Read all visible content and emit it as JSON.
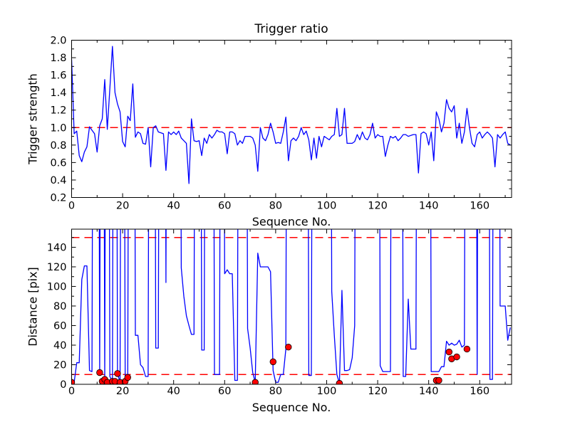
{
  "figure": {
    "background": "#ffffff",
    "note": "matplotlib-style figure, two stacked line plots, no legend, grid off",
    "offscale_value": 999
  },
  "styles": {
    "line_color": "#0000ff",
    "threshold_color": "#ff0000",
    "marker_face": "#ff0000",
    "marker_edge": "#000000",
    "axis_color": "#000000",
    "text_color": "#000000"
  },
  "chart_data": [
    {
      "type": "line",
      "title": "Trigger ratio",
      "xlabel": "Sequence No.",
      "ylabel": "Trigger strength",
      "xlim": [
        0,
        172.5
      ],
      "ylim": [
        0.2,
        2.0
      ],
      "grid": false,
      "legend": null,
      "xticks": {
        "major": [
          0,
          20,
          40,
          60,
          80,
          100,
          120,
          140,
          160
        ],
        "labels": [
          "0",
          "20",
          "40",
          "60",
          "80",
          "100",
          "120",
          "140",
          "160"
        ],
        "minor": [
          10,
          30,
          50,
          70,
          90,
          110,
          130,
          150,
          170
        ]
      },
      "yticks": {
        "major": [
          0.2,
          0.4,
          0.6,
          0.8,
          1.0,
          1.2,
          1.4,
          1.6,
          1.8,
          2.0
        ],
        "labels": [
          "0.2",
          "0.4",
          "0.6",
          "0.8",
          "1.0",
          "1.2",
          "1.4",
          "1.6",
          "1.8",
          "2.0"
        ],
        "minor": [
          0.3,
          0.5,
          0.7,
          0.9,
          1.1,
          1.3,
          1.5,
          1.7,
          1.9
        ]
      },
      "thresholds": [
        1.0
      ],
      "x_step": 1,
      "values": [
        1.78,
        0.93,
        0.96,
        0.68,
        0.61,
        0.72,
        0.78,
        1.01,
        0.97,
        0.93,
        0.72,
        1.02,
        1.1,
        1.55,
        0.98,
        1.45,
        1.93,
        1.4,
        1.27,
        1.18,
        0.84,
        0.78,
        1.13,
        1.08,
        1.5,
        0.89,
        0.95,
        0.93,
        0.82,
        0.81,
        1.0,
        0.55,
        1.0,
        1.02,
        0.95,
        0.94,
        0.93,
        0.51,
        0.95,
        0.92,
        0.95,
        0.92,
        0.96,
        0.88,
        0.85,
        0.82,
        0.36,
        1.1,
        0.85,
        0.84,
        0.85,
        0.68,
        0.88,
        0.82,
        0.92,
        0.88,
        0.92,
        0.97,
        0.95,
        0.95,
        0.93,
        0.7,
        0.95,
        0.95,
        0.93,
        0.8,
        0.85,
        0.82,
        0.9,
        0.9,
        0.9,
        0.88,
        0.8,
        0.5,
        1.0,
        0.88,
        0.85,
        0.92,
        1.05,
        0.95,
        0.82,
        0.83,
        0.82,
        0.95,
        1.12,
        0.62,
        0.85,
        0.88,
        0.85,
        0.9,
        1.0,
        0.92,
        0.96,
        0.86,
        0.63,
        0.88,
        0.65,
        0.9,
        0.78,
        0.9,
        0.88,
        0.86,
        0.9,
        0.92,
        1.22,
        0.9,
        0.92,
        1.22,
        0.82,
        0.82,
        0.82,
        0.84,
        0.92,
        0.86,
        0.95,
        0.88,
        0.86,
        0.92,
        1.05,
        0.88,
        0.92,
        0.9,
        0.9,
        0.67,
        0.8,
        0.9,
        0.88,
        0.9,
        0.85,
        0.88,
        0.92,
        0.92,
        0.9,
        0.91,
        0.92,
        0.92,
        0.48,
        0.93,
        0.95,
        0.93,
        0.8,
        0.95,
        0.62,
        1.18,
        1.1,
        0.95,
        1.05,
        1.32,
        1.22,
        1.18,
        1.25,
        0.88,
        1.05,
        0.82,
        0.95,
        1.22,
        1.0,
        0.82,
        0.78,
        0.92,
        0.95,
        0.88,
        0.92,
        0.95,
        0.92,
        0.88,
        0.55,
        0.92,
        0.88,
        0.92,
        0.95,
        0.82,
        0.8
      ],
      "markers": []
    },
    {
      "type": "line",
      "title": "",
      "xlabel": "Sequence No.",
      "ylabel": "Distance [pix]",
      "xlim": [
        0,
        172.5
      ],
      "ylim": [
        0,
        158.5
      ],
      "grid": false,
      "legend": null,
      "xticks": {
        "major": [
          0,
          20,
          40,
          60,
          80,
          100,
          120,
          140,
          160
        ],
        "labels": [
          "0",
          "20",
          "40",
          "60",
          "80",
          "100",
          "120",
          "140",
          "160"
        ],
        "minor": [
          10,
          30,
          50,
          70,
          90,
          110,
          130,
          150,
          170
        ]
      },
      "yticks": {
        "major": [
          0,
          20,
          40,
          60,
          80,
          100,
          120,
          140
        ],
        "labels": [
          "0",
          "20",
          "40",
          "60",
          "80",
          "100",
          "120",
          "140"
        ],
        "minor": [
          10,
          30,
          50,
          70,
          90,
          110,
          130,
          150
        ]
      },
      "thresholds": [
        150,
        10
      ],
      "x_step": 1,
      "values": [
        0,
        2,
        22,
        22,
        107,
        121,
        121,
        14,
        13,
        999,
        999,
        11,
        999,
        4,
        999,
        8,
        3,
        999,
        11,
        2,
        999,
        3,
        7,
        999,
        999,
        50,
        50,
        20,
        17,
        8,
        8,
        999,
        999,
        37,
        37,
        999,
        999,
        104,
        999,
        999,
        999,
        999,
        999,
        119,
        90,
        70,
        60,
        51,
        51,
        999,
        999,
        35,
        35,
        999,
        999,
        999,
        10,
        10,
        10,
        999,
        113,
        117,
        113,
        113,
        4,
        4,
        999,
        999,
        999,
        57,
        37,
        12,
        2,
        134,
        120,
        120,
        120,
        120,
        115,
        14,
        2,
        2,
        10,
        10,
        36,
        999,
        999,
        999,
        999,
        999,
        999,
        999,
        999,
        9,
        9,
        999,
        999,
        999,
        999,
        999,
        999,
        999,
        95,
        50,
        10,
        1,
        96,
        14,
        14,
        15,
        27,
        60,
        999,
        999,
        999,
        999,
        999,
        999,
        999,
        999,
        999,
        19,
        13,
        13,
        13,
        13,
        999,
        999,
        999,
        999,
        8,
        8,
        87,
        36,
        36,
        36,
        999,
        999,
        999,
        999,
        999,
        13,
        13,
        13,
        13,
        18,
        18,
        44,
        40,
        42,
        40,
        41,
        45,
        38,
        40,
        999,
        999,
        999,
        999,
        10,
        999,
        999,
        999,
        999,
        5,
        5,
        999,
        999,
        80,
        80,
        80,
        45,
        58
      ],
      "markers": [
        [
          0,
          2
        ],
        [
          11,
          12
        ],
        [
          12,
          3
        ],
        [
          13,
          5
        ],
        [
          14,
          2
        ],
        [
          16,
          3
        ],
        [
          17,
          3
        ],
        [
          18,
          11
        ],
        [
          19,
          2
        ],
        [
          21,
          3
        ],
        [
          22,
          7
        ],
        [
          72,
          2
        ],
        [
          79,
          23
        ],
        [
          85,
          38
        ],
        [
          105,
          1
        ],
        [
          143,
          4
        ],
        [
          144,
          4
        ],
        [
          148,
          33
        ],
        [
          149,
          26
        ],
        [
          151,
          28
        ],
        [
          155,
          36
        ]
      ]
    }
  ]
}
